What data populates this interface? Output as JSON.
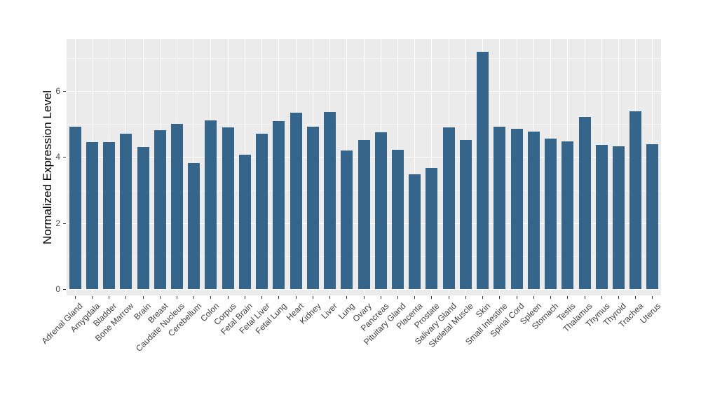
{
  "chart_data": {
    "type": "bar",
    "title": "",
    "xlabel": "",
    "ylabel": "Normalized Expression Level",
    "categories": [
      "Adrenal Gland",
      "Amygdala",
      "Bladder",
      "Bone Marrow",
      "Brain",
      "Breast",
      "Caudate Nucleus",
      "Cerebellum",
      "Colon",
      "Corpus",
      "Fetal Brain",
      "Fetal Liver",
      "Fetal Lung",
      "Heart",
      "Kidney",
      "Liver",
      "Lung",
      "Ovary",
      "Pancreas",
      "Pituitary Gland",
      "Placenta",
      "Prostate",
      "Salivary Gland",
      "Skeletal Muscle",
      "Skin",
      "Small Intestine",
      "Spinal Cord",
      "Spleen",
      "Stomach",
      "Testis",
      "Thalamus",
      "Thymus",
      "Thyroid",
      "Trachea",
      "Uterus"
    ],
    "values": [
      4.92,
      4.46,
      4.46,
      4.7,
      4.3,
      4.81,
      5.0,
      3.81,
      5.1,
      4.89,
      4.07,
      4.71,
      5.08,
      5.34,
      4.92,
      5.37,
      4.2,
      4.51,
      4.76,
      4.23,
      3.48,
      3.67,
      4.89,
      4.52,
      7.19,
      4.93,
      4.86,
      4.78,
      4.56,
      4.48,
      5.22,
      4.37,
      4.33,
      5.39,
      4.39
    ],
    "y_major_ticks": [
      0,
      2,
      4,
      6
    ],
    "y_minor_ticks": [
      1,
      3,
      5,
      7
    ],
    "ylim": [
      0,
      7.57
    ],
    "grid": "on",
    "legend": "none",
    "x_label_angle": 45,
    "colors": {
      "bar_fill": "#36658C",
      "panel_background": "#EBEBEB",
      "grid_major": "#FFFFFF",
      "grid_minor": "#F5F5F5",
      "axis_tick_text": "#4D4D4D",
      "x_axis_text": "#404040",
      "tick_mark": "#333333",
      "axis_title_text": "#000000"
    }
  }
}
